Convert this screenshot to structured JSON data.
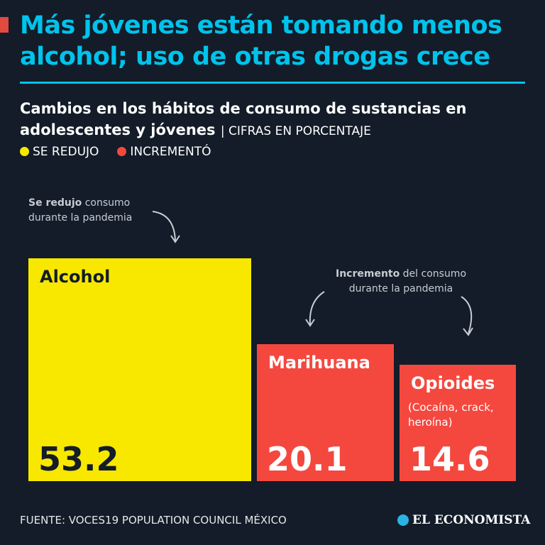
{
  "title": "Más jóvenes están tomando menos alcohol; uso de otras drogas crece",
  "subtitle": "Cambios en los hábitos de consumo de sustancias en adolescentes y jóvenes",
  "unit_note": "| CIFRAS EN PORCENTAJE",
  "legend": [
    {
      "label": "SE REDUJO",
      "color": "#f8e800"
    },
    {
      "label": "INCREMENTÓ",
      "color": "#f4483f"
    }
  ],
  "annotations": {
    "decrease": {
      "bold": "Se redujo",
      "rest": " consumo",
      "line2": "durante la pandemia"
    },
    "increase": {
      "bold": "Incremento",
      "rest": " del consumo",
      "line2": "durante la pandemia"
    }
  },
  "chart_data": {
    "type": "bar",
    "encoding": "area-proportional squares",
    "title": "Cambios en los hábitos de consumo de sustancias en adolescentes y jóvenes",
    "categories": [
      "Alcohol",
      "Marihuana",
      "Opioides"
    ],
    "values": [
      53.2,
      20.1,
      14.6
    ],
    "value_labels": [
      "53.2",
      "20.1",
      "14.6"
    ],
    "sublabels": [
      "",
      "",
      "(Cocaína, crack, heroína)"
    ],
    "status": [
      "Se redujo",
      "Incrementó",
      "Incrementó"
    ],
    "colors": [
      "#f8e800",
      "#f4483f",
      "#f4483f"
    ],
    "text_colors": [
      "#131c28",
      "#ffffff",
      "#ffffff"
    ]
  },
  "footer": {
    "source": "FUENTE: VOCES19 POPULATION COUNCIL MÉXICO",
    "brand": "EL ECONOMISTA"
  }
}
